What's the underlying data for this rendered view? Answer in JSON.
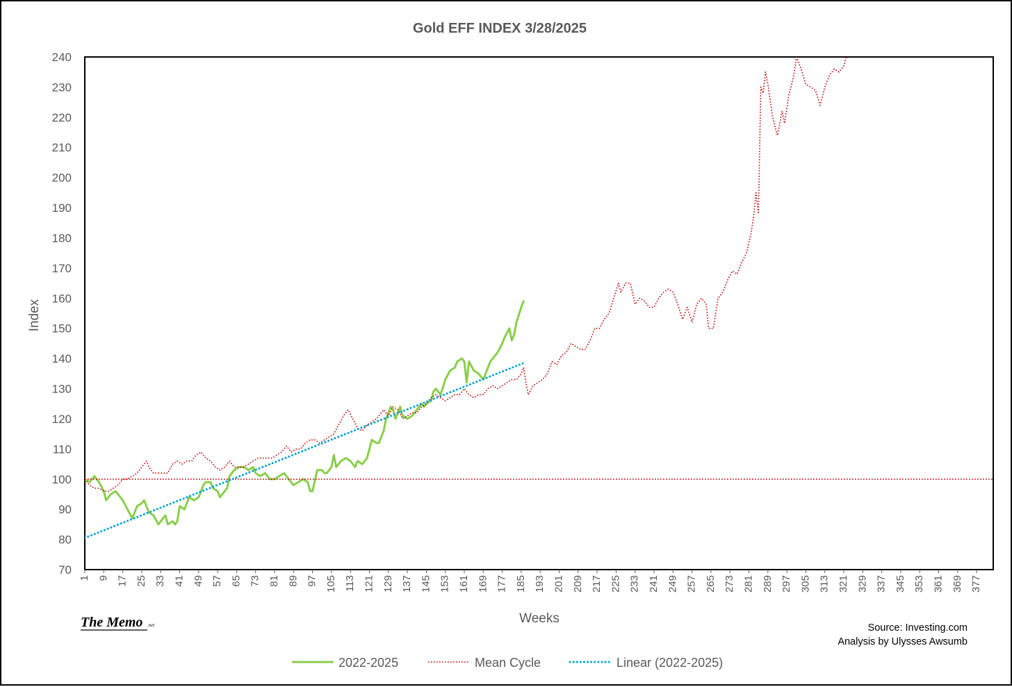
{
  "chart_data": {
    "type": "line",
    "title": "Gold EFF  INDEX 3/28/2025",
    "xlabel": "Weeks",
    "ylabel": "Index",
    "xlim": [
      1,
      384
    ],
    "ylim": [
      70,
      240
    ],
    "yticks": [
      70,
      80,
      90,
      100,
      110,
      120,
      130,
      140,
      150,
      160,
      170,
      180,
      190,
      200,
      210,
      220,
      230,
      240
    ],
    "xticks": [
      1,
      9,
      17,
      25,
      33,
      41,
      49,
      57,
      65,
      73,
      81,
      89,
      97,
      105,
      113,
      121,
      129,
      137,
      145,
      153,
      161,
      169,
      177,
      185,
      193,
      201,
      209,
      217,
      225,
      233,
      241,
      249,
      257,
      265,
      273,
      281,
      289,
      297,
      305,
      313,
      321,
      329,
      337,
      345,
      353,
      361,
      369,
      377
    ],
    "grid": false,
    "legend_position": "bottom",
    "series": [
      {
        "name": "2022-2025",
        "color": "#8ace4a",
        "style": "solid",
        "points": [
          [
            1,
            100
          ],
          [
            3,
            99
          ],
          [
            5,
            101
          ],
          [
            7,
            99
          ],
          [
            9,
            96
          ],
          [
            10,
            93
          ],
          [
            12,
            95
          ],
          [
            14,
            96
          ],
          [
            15,
            95
          ],
          [
            17,
            93
          ],
          [
            19,
            90
          ],
          [
            21,
            87
          ],
          [
            23,
            91
          ],
          [
            25,
            92
          ],
          [
            26,
            93
          ],
          [
            28,
            89
          ],
          [
            30,
            88
          ],
          [
            32,
            85
          ],
          [
            34,
            87
          ],
          [
            35,
            88
          ],
          [
            36,
            85
          ],
          [
            38,
            86
          ],
          [
            39,
            85
          ],
          [
            40,
            86
          ],
          [
            41,
            91
          ],
          [
            43,
            90
          ],
          [
            45,
            94
          ],
          [
            47,
            93
          ],
          [
            49,
            94
          ],
          [
            51,
            98
          ],
          [
            52,
            99
          ],
          [
            54,
            99
          ],
          [
            55,
            97
          ],
          [
            57,
            96
          ],
          [
            58,
            94
          ],
          [
            60,
            96
          ],
          [
            61,
            97
          ],
          [
            62,
            101
          ],
          [
            64,
            103
          ],
          [
            66,
            104
          ],
          [
            68,
            104
          ],
          [
            70,
            103
          ],
          [
            72,
            104
          ],
          [
            73,
            102
          ],
          [
            75,
            101
          ],
          [
            77,
            102
          ],
          [
            79,
            100
          ],
          [
            81,
            100
          ],
          [
            83,
            101
          ],
          [
            85,
            102
          ],
          [
            87,
            100
          ],
          [
            89,
            98
          ],
          [
            91,
            99
          ],
          [
            93,
            100
          ],
          [
            95,
            99
          ],
          [
            96,
            96
          ],
          [
            97,
            96
          ],
          [
            99,
            103
          ],
          [
            101,
            103
          ],
          [
            102,
            102
          ],
          [
            103,
            102
          ],
          [
            105,
            104
          ],
          [
            106,
            108
          ],
          [
            107,
            104
          ],
          [
            109,
            106
          ],
          [
            111,
            107
          ],
          [
            113,
            106
          ],
          [
            115,
            104
          ],
          [
            116,
            106
          ],
          [
            118,
            105
          ],
          [
            120,
            107
          ],
          [
            122,
            113
          ],
          [
            124,
            112
          ],
          [
            125,
            112
          ],
          [
            127,
            116
          ],
          [
            128,
            120
          ],
          [
            130,
            124
          ],
          [
            131,
            123
          ],
          [
            132,
            120
          ],
          [
            133,
            122
          ],
          [
            134,
            124
          ],
          [
            135,
            121
          ],
          [
            137,
            120
          ],
          [
            139,
            121
          ],
          [
            141,
            123
          ],
          [
            143,
            125
          ],
          [
            144,
            124
          ],
          [
            145,
            125
          ],
          [
            147,
            126
          ],
          [
            148,
            129
          ],
          [
            149,
            130
          ],
          [
            151,
            128
          ],
          [
            153,
            133
          ],
          [
            155,
            136
          ],
          [
            157,
            137
          ],
          [
            158,
            139
          ],
          [
            160,
            140
          ],
          [
            161,
            139
          ],
          [
            162,
            132
          ],
          [
            163,
            139
          ],
          [
            165,
            136
          ],
          [
            167,
            135
          ],
          [
            169,
            133
          ],
          [
            171,
            137
          ],
          [
            172,
            139
          ],
          [
            174,
            141
          ],
          [
            175,
            142
          ],
          [
            177,
            145
          ],
          [
            178,
            147
          ],
          [
            180,
            150
          ],
          [
            181,
            146
          ],
          [
            182,
            148
          ],
          [
            183,
            152
          ],
          [
            185,
            157
          ],
          [
            186,
            159
          ]
        ]
      },
      {
        "name": "Mean Cycle",
        "color": "#c00000",
        "style": "dotted",
        "points": [
          [
            1,
            100
          ],
          [
            3,
            98
          ],
          [
            5,
            97
          ],
          [
            7,
            97
          ],
          [
            9,
            96
          ],
          [
            11,
            96
          ],
          [
            13,
            97
          ],
          [
            15,
            98
          ],
          [
            17,
            100
          ],
          [
            19,
            100
          ],
          [
            21,
            101
          ],
          [
            23,
            102
          ],
          [
            25,
            104
          ],
          [
            27,
            106
          ],
          [
            28,
            104
          ],
          [
            30,
            102
          ],
          [
            32,
            102
          ],
          [
            34,
            102
          ],
          [
            36,
            102
          ],
          [
            38,
            105
          ],
          [
            40,
            106
          ],
          [
            42,
            105
          ],
          [
            44,
            106
          ],
          [
            46,
            106
          ],
          [
            48,
            108
          ],
          [
            50,
            109
          ],
          [
            52,
            107
          ],
          [
            54,
            106
          ],
          [
            56,
            104
          ],
          [
            58,
            103
          ],
          [
            60,
            104
          ],
          [
            62,
            106
          ],
          [
            64,
            104
          ],
          [
            66,
            104
          ],
          [
            68,
            104
          ],
          [
            70,
            105
          ],
          [
            72,
            106
          ],
          [
            74,
            107
          ],
          [
            76,
            107
          ],
          [
            78,
            107
          ],
          [
            80,
            107
          ],
          [
            82,
            108
          ],
          [
            84,
            109
          ],
          [
            86,
            111
          ],
          [
            88,
            109
          ],
          [
            90,
            110
          ],
          [
            92,
            110
          ],
          [
            94,
            112
          ],
          [
            96,
            113
          ],
          [
            98,
            113
          ],
          [
            100,
            112
          ],
          [
            102,
            113
          ],
          [
            104,
            114
          ],
          [
            106,
            115
          ],
          [
            108,
            118
          ],
          [
            110,
            121
          ],
          [
            112,
            123
          ],
          [
            114,
            120
          ],
          [
            116,
            117
          ],
          [
            118,
            116
          ],
          [
            120,
            118
          ],
          [
            122,
            119
          ],
          [
            124,
            120
          ],
          [
            126,
            122
          ],
          [
            127,
            123
          ],
          [
            129,
            121
          ],
          [
            131,
            124
          ],
          [
            133,
            123
          ],
          [
            135,
            120
          ],
          [
            137,
            121
          ],
          [
            139,
            122
          ],
          [
            141,
            122
          ],
          [
            143,
            124
          ],
          [
            145,
            125
          ],
          [
            147,
            127
          ],
          [
            149,
            128
          ],
          [
            151,
            127
          ],
          [
            153,
            126
          ],
          [
            155,
            127
          ],
          [
            157,
            128
          ],
          [
            159,
            128
          ],
          [
            161,
            130
          ],
          [
            163,
            128
          ],
          [
            165,
            127
          ],
          [
            167,
            128
          ],
          [
            169,
            128
          ],
          [
            171,
            130
          ],
          [
            173,
            131
          ],
          [
            175,
            130
          ],
          [
            177,
            131
          ],
          [
            179,
            132
          ],
          [
            181,
            133
          ],
          [
            183,
            133
          ],
          [
            185,
            135
          ],
          [
            186,
            137
          ],
          [
            187,
            132
          ],
          [
            188,
            128
          ],
          [
            190,
            131
          ],
          [
            192,
            132
          ],
          [
            194,
            133
          ],
          [
            196,
            135
          ],
          [
            198,
            139
          ],
          [
            200,
            138
          ],
          [
            202,
            141
          ],
          [
            204,
            142
          ],
          [
            206,
            145
          ],
          [
            208,
            144
          ],
          [
            210,
            143
          ],
          [
            212,
            143
          ],
          [
            214,
            146
          ],
          [
            216,
            150
          ],
          [
            218,
            150
          ],
          [
            220,
            153
          ],
          [
            222,
            155
          ],
          [
            224,
            160
          ],
          [
            226,
            165
          ],
          [
            227,
            162
          ],
          [
            229,
            165
          ],
          [
            231,
            165
          ],
          [
            233,
            158
          ],
          [
            235,
            160
          ],
          [
            237,
            159
          ],
          [
            239,
            157
          ],
          [
            241,
            157
          ],
          [
            243,
            160
          ],
          [
            245,
            162
          ],
          [
            247,
            163
          ],
          [
            249,
            162
          ],
          [
            251,
            158
          ],
          [
            253,
            153
          ],
          [
            255,
            157
          ],
          [
            257,
            152
          ],
          [
            259,
            158
          ],
          [
            261,
            160
          ],
          [
            263,
            158
          ],
          [
            264,
            150
          ],
          [
            266,
            150
          ],
          [
            268,
            160
          ],
          [
            270,
            162
          ],
          [
            272,
            166
          ],
          [
            274,
            169
          ],
          [
            276,
            168
          ],
          [
            278,
            172
          ],
          [
            280,
            175
          ],
          [
            282,
            182
          ],
          [
            283,
            187
          ],
          [
            284,
            195
          ],
          [
            285,
            188
          ],
          [
            286,
            230
          ],
          [
            287,
            228
          ],
          [
            288,
            235
          ],
          [
            289,
            231
          ],
          [
            291,
            220
          ],
          [
            293,
            214
          ],
          [
            295,
            222
          ],
          [
            296,
            218
          ],
          [
            298,
            228
          ],
          [
            300,
            234
          ],
          [
            301,
            240
          ],
          [
            303,
            236
          ],
          [
            305,
            231
          ],
          [
            307,
            230
          ],
          [
            309,
            229
          ],
          [
            311,
            224
          ],
          [
            313,
            230
          ],
          [
            315,
            234
          ],
          [
            317,
            236
          ],
          [
            319,
            235
          ],
          [
            321,
            237
          ],
          [
            322,
            240
          ]
        ]
      },
      {
        "name": "Mean Cycle baseline",
        "color": "#c00000",
        "style": "dotted",
        "points": [
          [
            1,
            100
          ],
          [
            384,
            100
          ]
        ]
      },
      {
        "name": "Linear (2022-2025)",
        "color": "#00a2d6",
        "style": "dotted",
        "points": [
          [
            1,
            80.5
          ],
          [
            186,
            138.5
          ]
        ]
      }
    ],
    "legend": [
      {
        "label": "2022-2025",
        "color": "#8ace4a",
        "style": "solid"
      },
      {
        "label": "Mean Cycle",
        "color": "#c00000",
        "style": "dotted"
      },
      {
        "label": "Linear (2022-2025)",
        "color": "#00a2d6",
        "style": "dotted"
      }
    ]
  },
  "footer": {
    "memo_brand": "The Memo",
    "memo_suffix": ".net",
    "source_line": "Source: Investing.com",
    "analysis_line": "Analysis by Ulysses Awsumb"
  }
}
